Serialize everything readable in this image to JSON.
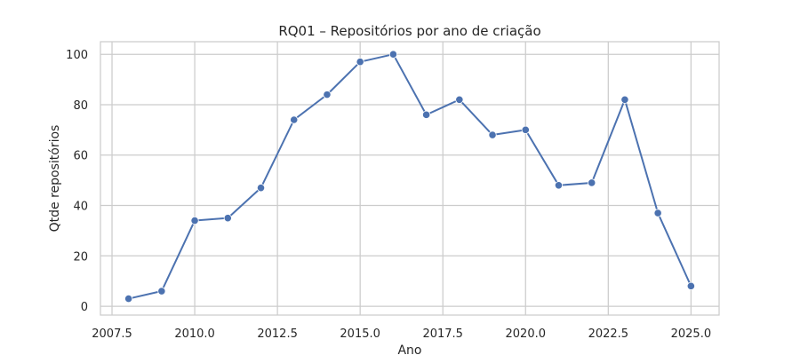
{
  "chart_data": {
    "type": "line",
    "title": "RQ01 – Repositórios por ano de criação",
    "xlabel": "Ano",
    "ylabel": "Qtde repositórios",
    "x_ticks": [
      "2007.5",
      "2010.0",
      "2012.5",
      "2015.0",
      "2017.5",
      "2020.0",
      "2022.5",
      "2025.0"
    ],
    "y_ticks": [
      "0",
      "20",
      "40",
      "60",
      "80",
      "100"
    ],
    "xlim": [
      2007.15,
      2025.85
    ],
    "ylim": [
      -3.5,
      105
    ],
    "grid": true,
    "line_color": "#4c72b0",
    "grid_color": "#cccccc",
    "x": [
      2008,
      2009,
      2010,
      2011,
      2012,
      2013,
      2014,
      2015,
      2016,
      2017,
      2018,
      2019,
      2020,
      2021,
      2022,
      2023,
      2024,
      2025
    ],
    "values": [
      3,
      6,
      34,
      35,
      47,
      74,
      84,
      97,
      100,
      76,
      82,
      68,
      70,
      48,
      49,
      82,
      37,
      8
    ]
  }
}
